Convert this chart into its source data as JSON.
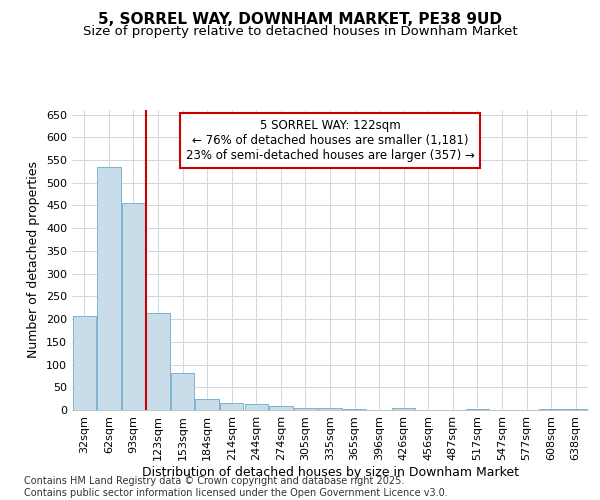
{
  "title": "5, SORREL WAY, DOWNHAM MARKET, PE38 9UD",
  "subtitle": "Size of property relative to detached houses in Downham Market",
  "xlabel": "Distribution of detached houses by size in Downham Market",
  "ylabel": "Number of detached properties",
  "categories": [
    "32sqm",
    "62sqm",
    "93sqm",
    "123sqm",
    "153sqm",
    "184sqm",
    "214sqm",
    "244sqm",
    "274sqm",
    "305sqm",
    "335sqm",
    "365sqm",
    "396sqm",
    "426sqm",
    "456sqm",
    "487sqm",
    "517sqm",
    "547sqm",
    "577sqm",
    "608sqm",
    "638sqm"
  ],
  "values": [
    207,
    535,
    455,
    213,
    82,
    25,
    15,
    13,
    8,
    5,
    5,
    2,
    0,
    4,
    0,
    0,
    3,
    0,
    0,
    2,
    3
  ],
  "bar_color": "#c9dcea",
  "bar_edge_color": "#7ab3d0",
  "bar_linewidth": 0.7,
  "vline_x_index": 3,
  "vline_color": "#cc0000",
  "vline_linewidth": 1.5,
  "annotation_text": "5 SORREL WAY: 122sqm\n← 76% of detached houses are smaller (1,181)\n23% of semi-detached houses are larger (357) →",
  "annotation_box_color": "#ffffff",
  "annotation_box_edge": "#cc0000",
  "ylim": [
    0,
    660
  ],
  "yticks": [
    0,
    50,
    100,
    150,
    200,
    250,
    300,
    350,
    400,
    450,
    500,
    550,
    600,
    650
  ],
  "footer": "Contains HM Land Registry data © Crown copyright and database right 2025.\nContains public sector information licensed under the Open Government Licence v3.0.",
  "bg_color": "#ffffff",
  "plot_bg_color": "#ffffff",
  "grid_color": "#d0d8e0",
  "title_fontsize": 11,
  "subtitle_fontsize": 9.5,
  "xlabel_fontsize": 9,
  "ylabel_fontsize": 9,
  "tick_fontsize": 8,
  "footer_fontsize": 7,
  "annotation_fontsize": 8.5
}
